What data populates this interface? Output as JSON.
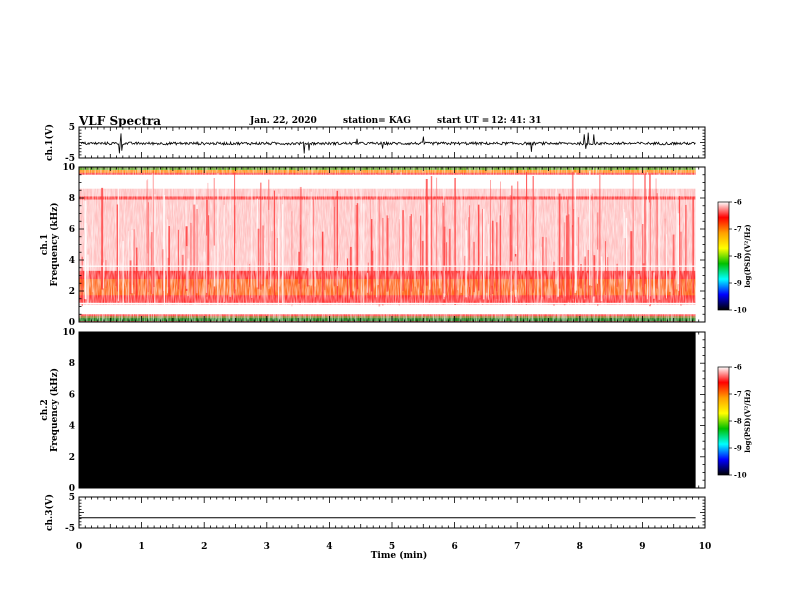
{
  "header": {
    "title": "VLF Spectra",
    "date": "Jan. 22, 2020",
    "station": "station= KAG",
    "start_label": "start  UT =",
    "start_time": "12: 41: 31"
  },
  "colorbar": {
    "label": "log(PSD)(V²/Hz)",
    "ticks": [
      "-6",
      "-7",
      "-8",
      "-9",
      "-10"
    ],
    "colors": [
      "#ffffff",
      "#ff0000",
      "#ffa000",
      "#ffff00",
      "#00c000",
      "#00ffff",
      "#0000ff",
      "#000000"
    ]
  },
  "chart_data": [
    {
      "type": "line",
      "name": "ch1-waveform",
      "title": "VLF Spectra",
      "ylabel": "ch.1(V)",
      "ylim": [
        -5,
        5
      ],
      "yticks": [
        "5",
        "-5"
      ],
      "x_range_min": [
        0,
        9.85
      ],
      "baseline_v": -0.3,
      "notes": "noise-like trace around -0.3 V with sporadic spikes"
    },
    {
      "type": "heatmap",
      "name": "ch1-spectrogram",
      "ylabel": "ch.1\nFrequency (kHz)",
      "ylim": [
        0,
        10
      ],
      "yticks": [
        "0",
        "2",
        "4",
        "6",
        "8",
        "10"
      ],
      "x_range_min": [
        0,
        9.85
      ],
      "z_label": "log(PSD)(V²/Hz)",
      "z_range": [
        -10,
        -6
      ],
      "bands_khz": [
        {
          "range": [
            1.2,
            3.3
          ],
          "level": "high (red/yellow)"
        },
        {
          "range": [
            7.9,
            8.1
          ],
          "level": "high (red)"
        },
        {
          "range": [
            9.5,
            10.0
          ],
          "level": "high (red/yellow/green)"
        },
        {
          "range": [
            0.0,
            0.5
          ],
          "level": "high (green/yellow)"
        }
      ]
    },
    {
      "type": "heatmap",
      "name": "ch2-spectrogram",
      "ylabel": "ch.2\nFrequency (kHz)",
      "ylim": [
        0,
        10
      ],
      "yticks": [
        "0",
        "2",
        "4",
        "6",
        "8",
        "10"
      ],
      "x_range_min": [
        0,
        9.85
      ],
      "z_label": "log(PSD)(V²/Hz)",
      "z_range": [
        -10,
        -6
      ],
      "notes": "uniformly black (no data / below -10)"
    },
    {
      "type": "line",
      "name": "ch3-waveform",
      "ylabel": "ch.3(V)",
      "ylim": [
        -5,
        5
      ],
      "yticks": [
        "5",
        "-5"
      ],
      "x_range_min": [
        0,
        9.85
      ],
      "baseline_v": -1.7,
      "notes": "flat line"
    }
  ],
  "xaxis": {
    "label": "Time (min)",
    "range": [
      0,
      10
    ],
    "ticks": [
      "0",
      "1",
      "2",
      "3",
      "4",
      "5",
      "6",
      "7",
      "8",
      "9",
      "10"
    ]
  }
}
